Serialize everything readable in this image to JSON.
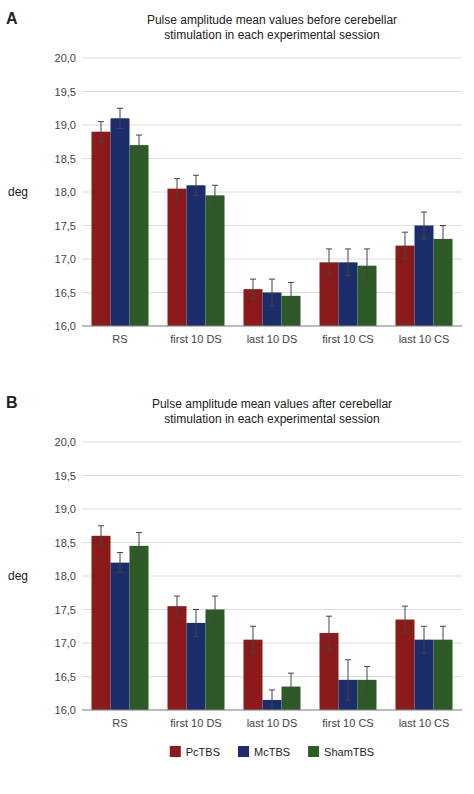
{
  "chart_data": [
    {
      "type": "bar",
      "title": "Pulse amplitude mean values before cerebellar\nstimulation in each experimental session",
      "annotations": [
        "A"
      ],
      "y_label": "deg",
      "categories": [
        "RS",
        "first 10 DS",
        "last 10 DS",
        "first 10 CS",
        "last 10 CS"
      ],
      "series": [
        {
          "name": "PcTBS",
          "color": "#8B1A1A",
          "values": [
            18.9,
            18.05,
            16.55,
            16.95,
            17.2
          ],
          "errors": [
            0.15,
            0.15,
            0.15,
            0.2,
            0.2
          ]
        },
        {
          "name": "McTBS",
          "color": "#1C2D6B",
          "values": [
            19.1,
            18.1,
            16.5,
            16.95,
            17.5
          ],
          "errors": [
            0.15,
            0.15,
            0.2,
            0.2,
            0.2
          ]
        },
        {
          "name": "ShamTBS",
          "color": "#2D5A27",
          "values": [
            18.7,
            17.95,
            16.45,
            16.9,
            17.3
          ],
          "errors": [
            0.15,
            0.15,
            0.2,
            0.25,
            0.2
          ]
        }
      ],
      "ylim": [
        16.0,
        20.0
      ],
      "yticks": [
        {
          "value": 16.0,
          "label": "16,0"
        },
        {
          "value": 16.5,
          "label": "16,5"
        },
        {
          "value": 17.0,
          "label": "17,0"
        },
        {
          "value": 17.5,
          "label": "17,5"
        },
        {
          "value": 18.0,
          "label": "18,0"
        },
        {
          "value": 18.5,
          "label": "18,5"
        },
        {
          "value": 19.0,
          "label": "19,0"
        },
        {
          "value": 19.5,
          "label": "19,5"
        },
        {
          "value": 20.0,
          "label": "20,0"
        }
      ],
      "grid": true,
      "legend": false
    },
    {
      "type": "bar",
      "title": "Pulse amplitude mean values after cerebellar\nstimulation in each experimental session",
      "annotations": [
        "B"
      ],
      "y_label": "deg",
      "categories": [
        "RS",
        "first 10 DS",
        "last 10 DS",
        "first 10 CS",
        "last 10 CS"
      ],
      "series": [
        {
          "name": "PcTBS",
          "color": "#8B1A1A",
          "values": [
            18.6,
            17.55,
            17.05,
            17.15,
            17.35
          ],
          "errors": [
            0.15,
            0.15,
            0.2,
            0.25,
            0.2
          ]
        },
        {
          "name": "McTBS",
          "color": "#1C2D6B",
          "values": [
            18.2,
            17.3,
            16.15,
            16.45,
            17.05
          ],
          "errors": [
            0.15,
            0.2,
            0.15,
            0.3,
            0.2
          ]
        },
        {
          "name": "ShamTBS",
          "color": "#2D5A27",
          "values": [
            18.45,
            17.5,
            16.35,
            16.45,
            17.05
          ],
          "errors": [
            0.2,
            0.2,
            0.2,
            0.2,
            0.2
          ]
        }
      ],
      "ylim": [
        16.0,
        20.0
      ],
      "yticks": [
        {
          "value": 16.0,
          "label": "16,0"
        },
        {
          "value": 16.5,
          "label": "16,5"
        },
        {
          "value": 17.0,
          "label": "17,0"
        },
        {
          "value": 17.5,
          "label": "17,5"
        },
        {
          "value": 18.0,
          "label": "18,0"
        },
        {
          "value": 18.5,
          "label": "18,5"
        },
        {
          "value": 19.0,
          "label": "19,0"
        },
        {
          "value": 19.5,
          "label": "19,5"
        },
        {
          "value": 20.0,
          "label": "20,0"
        }
      ],
      "grid": true,
      "legend": "bottom"
    }
  ]
}
